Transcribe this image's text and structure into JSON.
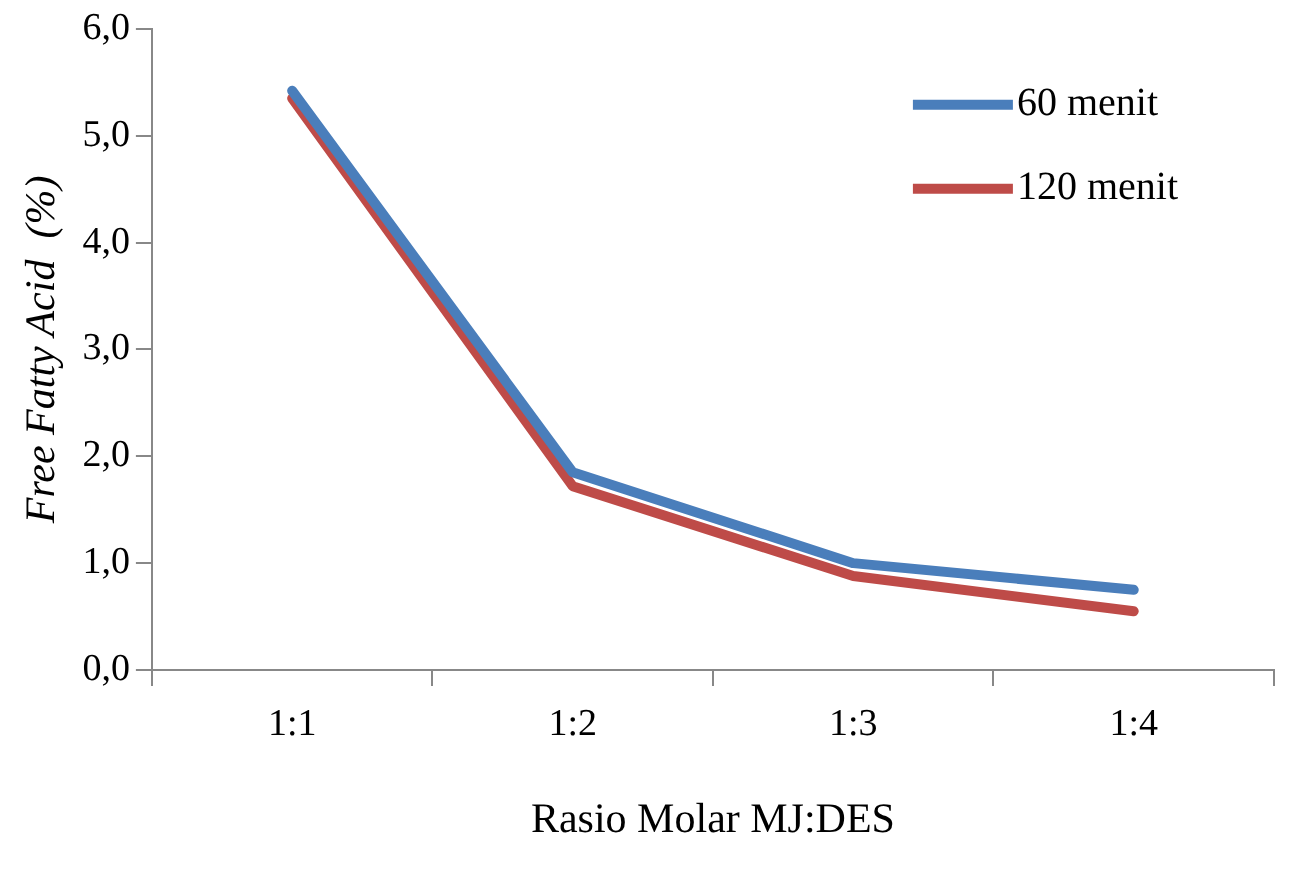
{
  "chart_data": {
    "type": "line",
    "xlabel": "Rasio Molar MJ:DES",
    "ylabel": "Free Fatty Acid  (%)",
    "categories": [
      "1:1",
      "1:2",
      "1:3",
      "1:4"
    ],
    "series": [
      {
        "name": "60 menit",
        "color": "#4a7ebb",
        "values": [
          5.42,
          1.85,
          1.0,
          0.75
        ]
      },
      {
        "name": "120 menit",
        "color": "#be4b48",
        "values": [
          5.35,
          1.72,
          0.88,
          0.55
        ]
      }
    ],
    "ylim": [
      0,
      6
    ],
    "yticks": [
      {
        "value": 0,
        "label": "0,0"
      },
      {
        "value": 1,
        "label": "1,0"
      },
      {
        "value": 2,
        "label": "2,0"
      },
      {
        "value": 3,
        "label": "3,0"
      },
      {
        "value": 4,
        "label": "4,0"
      },
      {
        "value": 5,
        "label": "5,0"
      },
      {
        "value": 6,
        "label": "6,0"
      }
    ],
    "grid": false,
    "legend": "top right",
    "marker": "none",
    "line_style": "solid"
  }
}
